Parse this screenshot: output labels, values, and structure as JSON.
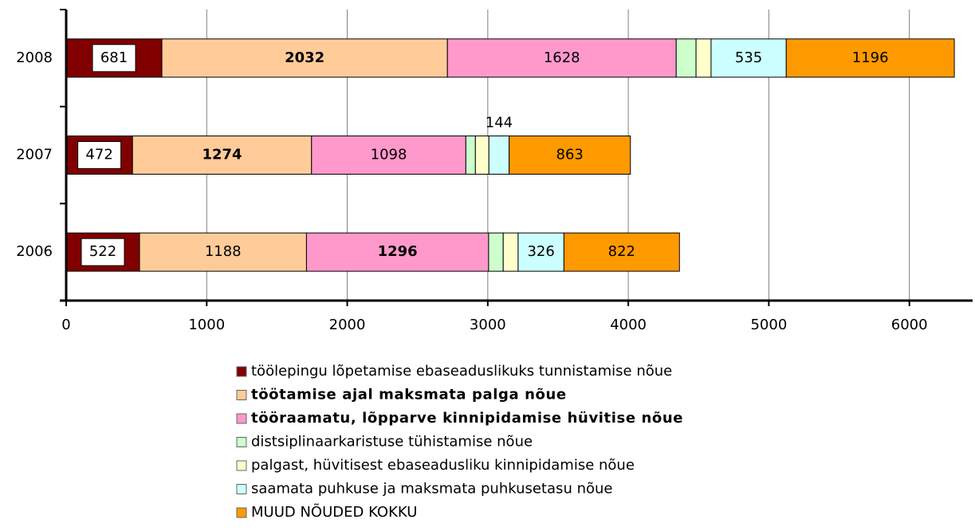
{
  "chart_data": {
    "type": "stacked-barh",
    "categories": [
      "2006",
      "2007",
      "2008"
    ],
    "series": [
      {
        "name": "töölepingu lõpetamise ebaseaduslikuks tunnistamise nõue",
        "color": "#800000",
        "values": [
          522,
          472,
          681
        ],
        "show_labels": true,
        "label_box": true
      },
      {
        "name": "töötamise ajal maksmata palga nõue",
        "color": "#ffcc99",
        "values": [
          1188,
          1274,
          2032
        ],
        "show_labels": true
      },
      {
        "name": "tööraamatu, lõpparve kinnipidamise hüvitise nõue",
        "color": "#ff99cc",
        "values": [
          1296,
          1098,
          1628
        ],
        "show_labels": true
      },
      {
        "name": "distsiplinaarkaristuse tühistamise nõue",
        "color": "#ccffcc",
        "values": [
          104,
          68,
          141
        ],
        "show_labels": false
      },
      {
        "name": "palgast, hüvitisest ebaseadusliku kinnipidamise nõue",
        "color": "#ffffcc",
        "values": [
          106,
          96,
          107
        ],
        "show_labels": false
      },
      {
        "name": "saamata puhkuse ja maksmata puhkusetasu nõue",
        "color": "#ccffff",
        "values": [
          326,
          144,
          535
        ],
        "show_labels": true
      },
      {
        "name": "MUUD NÕUDED KOKKU",
        "color": "#ff9900",
        "values": [
          822,
          863,
          1196
        ],
        "show_labels": true
      }
    ],
    "xlim": [
      0,
      6450
    ],
    "xticks": [
      0,
      1000,
      2000,
      3000,
      4000,
      5000,
      6000
    ],
    "grid": true
  }
}
